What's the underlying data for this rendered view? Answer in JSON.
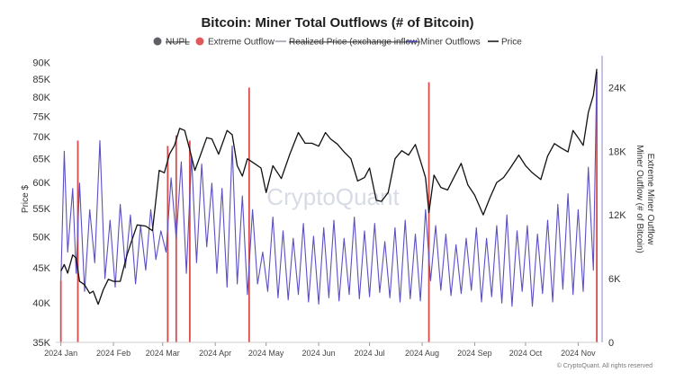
{
  "chart_data": {
    "type": "line",
    "title": "Bitcoin: Miner Total Outflows (# of Bitcoin)",
    "legend": [
      {
        "name": "NUPL",
        "color": "#5f5f68",
        "marker": "circle",
        "hidden": true
      },
      {
        "name": "Extreme Outflow",
        "color": "#e05a5a",
        "marker": "circle",
        "hidden": false
      },
      {
        "name": "Realized Price (exchange inflow)",
        "color": "#9a9ab0",
        "marker": "line",
        "hidden": true
      },
      {
        "name": "Miner Outflows",
        "color": "#5b4fc4",
        "marker": "line",
        "hidden": false
      },
      {
        "name": "Price",
        "color": "#111111",
        "marker": "line",
        "hidden": false
      }
    ],
    "legend_position": "top-center",
    "left_axis": {
      "label": "Price $",
      "scale": "log",
      "range": [
        35000,
        92000
      ],
      "ticks": [
        35000,
        40000,
        45000,
        50000,
        55000,
        60000,
        65000,
        70000,
        75000,
        80000,
        85000,
        90000
      ],
      "tick_labels": [
        "35K",
        "40K",
        "45K",
        "50K",
        "55K",
        "60K",
        "65K",
        "70K",
        "75K",
        "80K",
        "85K",
        "90K"
      ]
    },
    "right_axis": {
      "label": "Extreme Miner Outflow",
      "label2": "Miner Outflow (# of Bitcoin)",
      "scale": "linear",
      "range": [
        0,
        27000
      ],
      "ticks": [
        0,
        6000,
        12000,
        18000,
        24000
      ],
      "tick_labels": [
        "0",
        "6K",
        "12K",
        "18K",
        "24K"
      ]
    },
    "x_axis": {
      "range": [
        "2023-12-29",
        "2024-11-13"
      ],
      "ticks": [
        "2024-01-01",
        "2024-02-01",
        "2024-03-01",
        "2024-04-01",
        "2024-05-01",
        "2024-06-01",
        "2024-07-01",
        "2024-08-01",
        "2024-09-01",
        "2024-10-01",
        "2024-11-01"
      ],
      "tick_labels": [
        "2024 Jan",
        "2024 Feb",
        "2024 Mar",
        "2024 Apr",
        "2024 May",
        "2024 Jun",
        "2024 Jul",
        "2024 Aug",
        "2024 Sep",
        "2024 Oct",
        "2024 Nov"
      ]
    },
    "grid": false,
    "series": [
      {
        "name": "Price",
        "axis": "left",
        "color": "#111111",
        "x": [
          "2024-01-01",
          "2024-01-03",
          "2024-01-05",
          "2024-01-08",
          "2024-01-10",
          "2024-01-12",
          "2024-01-15",
          "2024-01-18",
          "2024-01-20",
          "2024-01-23",
          "2024-01-26",
          "2024-01-29",
          "2024-02-01",
          "2024-02-05",
          "2024-02-09",
          "2024-02-12",
          "2024-02-15",
          "2024-02-20",
          "2024-02-24",
          "2024-02-28",
          "2024-03-02",
          "2024-03-05",
          "2024-03-08",
          "2024-03-11",
          "2024-03-14",
          "2024-03-17",
          "2024-03-20",
          "2024-03-23",
          "2024-03-27",
          "2024-03-30",
          "2024-04-03",
          "2024-04-08",
          "2024-04-11",
          "2024-04-14",
          "2024-04-17",
          "2024-04-20",
          "2024-04-24",
          "2024-04-28",
          "2024-05-01",
          "2024-05-05",
          "2024-05-10",
          "2024-05-15",
          "2024-05-20",
          "2024-05-24",
          "2024-05-28",
          "2024-06-01",
          "2024-06-05",
          "2024-06-08",
          "2024-06-12",
          "2024-06-16",
          "2024-06-20",
          "2024-06-24",
          "2024-06-28",
          "2024-07-01",
          "2024-07-05",
          "2024-07-08",
          "2024-07-12",
          "2024-07-16",
          "2024-07-20",
          "2024-07-24",
          "2024-07-28",
          "2024-07-31",
          "2024-08-03",
          "2024-08-05",
          "2024-08-08",
          "2024-08-12",
          "2024-08-16",
          "2024-08-20",
          "2024-08-24",
          "2024-08-28",
          "2024-09-01",
          "2024-09-06",
          "2024-09-10",
          "2024-09-14",
          "2024-09-18",
          "2024-09-22",
          "2024-09-27",
          "2024-10-01",
          "2024-10-05",
          "2024-10-10",
          "2024-10-14",
          "2024-10-18",
          "2024-10-22",
          "2024-10-26",
          "2024-10-29",
          "2024-11-01",
          "2024-11-04",
          "2024-11-07",
          "2024-11-10",
          "2024-11-12"
        ],
        "values": [
          44500,
          45500,
          44200,
          47000,
          46500,
          43000,
          42500,
          41300,
          41600,
          39800,
          41800,
          43300,
          43000,
          43000,
          47000,
          49500,
          52000,
          51800,
          51000,
          62500,
          62000,
          66000,
          68000,
          72000,
          71500,
          67000,
          62500,
          65500,
          69800,
          69500,
          66000,
          71500,
          70500,
          63500,
          61300,
          65000,
          64000,
          63000,
          58000,
          63500,
          60800,
          66000,
          71000,
          68500,
          68500,
          67800,
          71000,
          69500,
          68300,
          66500,
          65000,
          60300,
          61000,
          63000,
          56500,
          56300,
          58000,
          65000,
          66800,
          65800,
          68200,
          64600,
          61000,
          54200,
          61500,
          59000,
          58500,
          61200,
          64000,
          59500,
          57500,
          53800,
          57000,
          60000,
          61000,
          63000,
          65800,
          63500,
          62000,
          60600,
          65600,
          68400,
          67400,
          66500,
          71500,
          69800,
          68000,
          76000,
          80500,
          88000
        ]
      },
      {
        "name": "Miner Outflows",
        "axis": "right",
        "color": "#5b4fc4",
        "x": [
          "2024-01-01",
          "2024-01-03",
          "2024-01-05",
          "2024-01-08",
          "2024-01-10",
          "2024-01-12",
          "2024-01-15",
          "2024-01-18",
          "2024-01-21",
          "2024-01-24",
          "2024-01-27",
          "2024-01-30",
          "2024-02-02",
          "2024-02-05",
          "2024-02-08",
          "2024-02-11",
          "2024-02-14",
          "2024-02-17",
          "2024-02-20",
          "2024-02-23",
          "2024-02-26",
          "2024-02-29",
          "2024-03-03",
          "2024-03-06",
          "2024-03-09",
          "2024-03-12",
          "2024-03-15",
          "2024-03-18",
          "2024-03-21",
          "2024-03-24",
          "2024-03-27",
          "2024-03-30",
          "2024-04-02",
          "2024-04-05",
          "2024-04-08",
          "2024-04-11",
          "2024-04-14",
          "2024-04-17",
          "2024-04-20",
          "2024-04-23",
          "2024-04-26",
          "2024-04-29",
          "2024-05-02",
          "2024-05-05",
          "2024-05-08",
          "2024-05-11",
          "2024-05-14",
          "2024-05-17",
          "2024-05-20",
          "2024-05-23",
          "2024-05-26",
          "2024-05-29",
          "2024-06-01",
          "2024-06-04",
          "2024-06-07",
          "2024-06-10",
          "2024-06-13",
          "2024-06-16",
          "2024-06-19",
          "2024-06-22",
          "2024-06-25",
          "2024-06-28",
          "2024-07-01",
          "2024-07-04",
          "2024-07-07",
          "2024-07-10",
          "2024-07-13",
          "2024-07-16",
          "2024-07-19",
          "2024-07-22",
          "2024-07-25",
          "2024-07-28",
          "2024-07-31",
          "2024-08-03",
          "2024-08-06",
          "2024-08-09",
          "2024-08-12",
          "2024-08-15",
          "2024-08-18",
          "2024-08-21",
          "2024-08-24",
          "2024-08-27",
          "2024-08-30",
          "2024-09-02",
          "2024-09-05",
          "2024-09-08",
          "2024-09-11",
          "2024-09-14",
          "2024-09-17",
          "2024-09-20",
          "2024-09-23",
          "2024-09-26",
          "2024-09-29",
          "2024-10-02",
          "2024-10-05",
          "2024-10-08",
          "2024-10-11",
          "2024-10-14",
          "2024-10-17",
          "2024-10-20",
          "2024-10-23",
          "2024-10-26",
          "2024-10-29",
          "2024-11-01",
          "2024-11-04",
          "2024-11-07",
          "2024-11-10",
          "2024-11-12"
        ],
        "values": [
          5800,
          18000,
          8500,
          14500,
          6500,
          15000,
          4800,
          12500,
          7500,
          19000,
          6000,
          11500,
          5200,
          13000,
          7000,
          12000,
          5500,
          11000,
          6800,
          12500,
          7800,
          10500,
          8500,
          15500,
          9800,
          17000,
          6500,
          17500,
          7500,
          16800,
          9000,
          15000,
          6500,
          14500,
          5200,
          18500,
          5500,
          13800,
          4500,
          12500,
          5500,
          8500,
          4800,
          11800,
          4200,
          10500,
          4000,
          9800,
          4500,
          11200,
          3800,
          10000,
          3600,
          10800,
          4200,
          11500,
          3900,
          9800,
          4500,
          11800,
          4100,
          10500,
          4300,
          11200,
          4700,
          9500,
          4200,
          10800,
          3800,
          11500,
          4100,
          10200,
          3900,
          12500,
          5800,
          11000,
          4900,
          10200,
          4400,
          9200,
          4600,
          9800,
          4900,
          10800,
          3800,
          9800,
          4300,
          11000,
          3700,
          12000,
          3400,
          10500,
          4800,
          11000,
          3400,
          10200,
          4600,
          11500,
          3800,
          13000,
          5000,
          14000,
          4500,
          12500,
          4800,
          16500,
          6800,
          25500
        ]
      },
      {
        "name": "Extreme Outflow",
        "axis": "right",
        "type": "bar",
        "color": "#d94c4c",
        "x": [
          "2024-01-01",
          "2024-01-11",
          "2024-03-04",
          "2024-03-09",
          "2024-03-17",
          "2024-04-21",
          "2024-08-05",
          "2024-11-12"
        ],
        "values": [
          5800,
          19000,
          18500,
          19500,
          19000,
          24000,
          24500,
          25500
        ]
      }
    ],
    "watermark": "CryptoQuant",
    "copyright": "© CryptoQuant. All rights reserved"
  }
}
